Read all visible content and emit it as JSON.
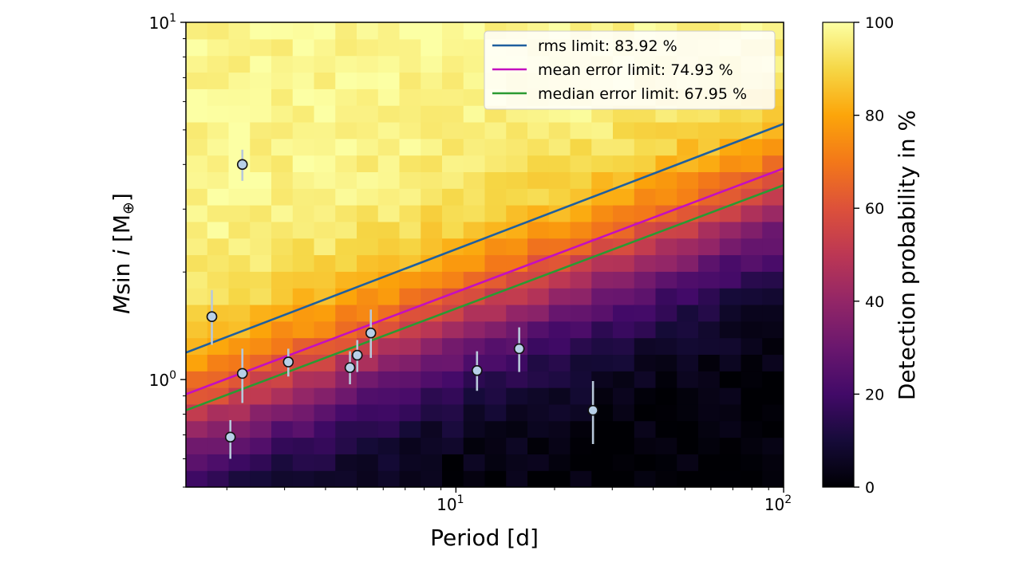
{
  "chart_data": {
    "type": "heatmap",
    "title": "",
    "xlabel": "Period [d]",
    "ylabel": "Msin i [M⊕]",
    "ylabel_parts": {
      "m": "M",
      "sin": "sin",
      "i": "i",
      "unit": "[M",
      "oplus": "⊕",
      "close": "]"
    },
    "xscale": "log",
    "yscale": "log",
    "xlim": [
      1.5,
      100
    ],
    "ylim": [
      0.5,
      10
    ],
    "x_ticks": [
      {
        "value": 10,
        "base": "10",
        "exp": "1"
      },
      {
        "value": 100,
        "base": "10",
        "exp": "2"
      }
    ],
    "y_ticks": [
      {
        "value": 1,
        "base": "10",
        "exp": "0"
      },
      {
        "value": 10,
        "base": "10",
        "exp": "1"
      }
    ],
    "colorbar": {
      "label": "Detection probability in %",
      "range": [
        0,
        100
      ],
      "ticks": [
        "0",
        "20",
        "40",
        "60",
        "80",
        "100"
      ],
      "colormap": "inferno"
    },
    "heatmap": {
      "n_period_bins": 28,
      "n_mass_bins": 28,
      "description": "detection probability in % over period (log) and mass (log)",
      "noise_seed": 7
    },
    "lines": [
      {
        "name": "rms limit: 83.92 %",
        "color": "#1f5f9e",
        "points": [
          [
            1.5,
            1.19
          ],
          [
            100,
            5.2
          ]
        ]
      },
      {
        "name": "mean error limit: 74.93 %",
        "color": "#c40fbf",
        "points": [
          [
            1.5,
            0.91
          ],
          [
            100,
            3.9
          ]
        ]
      },
      {
        "name": "median error limit: 67.95 %",
        "color": "#2a9a32",
        "points": [
          [
            1.5,
            0.82
          ],
          [
            100,
            3.5
          ]
        ]
      }
    ],
    "points": [
      {
        "period": 1.8,
        "mass": 1.5,
        "err_low": 1.25,
        "err_high": 1.78
      },
      {
        "period": 2.05,
        "mass": 0.69,
        "err_low": 0.6,
        "err_high": 0.77
      },
      {
        "period": 2.23,
        "mass": 4.0,
        "err_low": 3.6,
        "err_high": 4.4
      },
      {
        "period": 2.23,
        "mass": 1.04,
        "err_low": 0.86,
        "err_high": 1.22
      },
      {
        "period": 3.08,
        "mass": 1.12,
        "err_low": 1.02,
        "err_high": 1.22
      },
      {
        "period": 4.75,
        "mass": 1.08,
        "err_low": 0.97,
        "err_high": 1.2
      },
      {
        "period": 5.0,
        "mass": 1.17,
        "err_low": 1.05,
        "err_high": 1.29
      },
      {
        "period": 5.5,
        "mass": 1.35,
        "err_low": 1.15,
        "err_high": 1.57
      },
      {
        "period": 11.6,
        "mass": 1.06,
        "err_low": 0.93,
        "err_high": 1.2
      },
      {
        "period": 15.6,
        "mass": 1.22,
        "err_low": 1.05,
        "err_high": 1.4
      },
      {
        "period": 26.2,
        "mass": 0.82,
        "err_low": 0.66,
        "err_high": 0.99
      }
    ],
    "legend_position": "top-right"
  }
}
